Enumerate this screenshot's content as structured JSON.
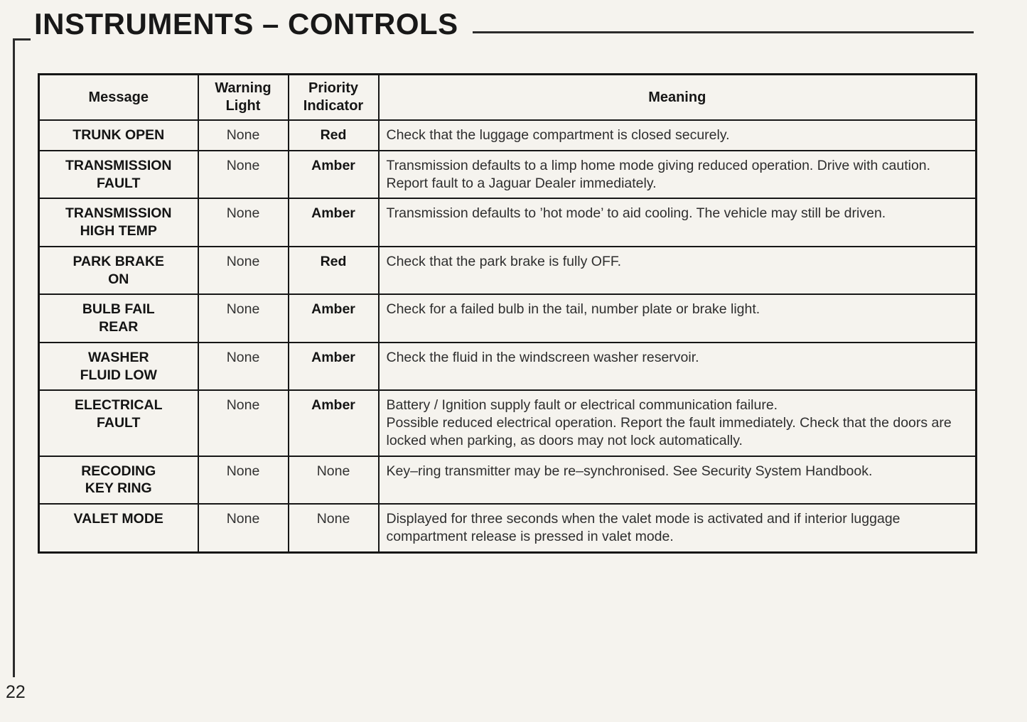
{
  "header": {
    "title": "INSTRUMENTS – CONTROLS"
  },
  "table": {
    "columns": [
      "Message",
      "Warning Light",
      "Priority Indicator",
      "Meaning"
    ],
    "rows": [
      {
        "message_lines": [
          "TRUNK OPEN"
        ],
        "warning_light": "None",
        "priority": "Red",
        "priority_bold": true,
        "meaning": "Check that the luggage compartment is closed securely."
      },
      {
        "message_lines": [
          "TRANSMISSION",
          "FAULT"
        ],
        "warning_light": "None",
        "priority": "Amber",
        "priority_bold": true,
        "meaning": "Transmission defaults to a limp home mode giving reduced operation. Drive with caution. Report fault to a Jaguar Dealer immediately."
      },
      {
        "message_lines": [
          "TRANSMISSION",
          "HIGH TEMP"
        ],
        "warning_light": "None",
        "priority": "Amber",
        "priority_bold": true,
        "meaning": "Transmission defaults to ’hot mode’ to aid cooling. The vehicle may still be driven."
      },
      {
        "message_lines": [
          "PARK BRAKE",
          "ON"
        ],
        "warning_light": "None",
        "priority": "Red",
        "priority_bold": true,
        "meaning": "Check that the park brake is fully OFF."
      },
      {
        "message_lines": [
          "BULB FAIL",
          "REAR"
        ],
        "warning_light": "None",
        "priority": "Amber",
        "priority_bold": true,
        "meaning": "Check for a failed bulb in the tail, number plate or brake light."
      },
      {
        "message_lines": [
          "WASHER",
          "FLUID LOW"
        ],
        "warning_light": "None",
        "priority": "Amber",
        "priority_bold": true,
        "meaning": "Check the fluid in the windscreen washer reservoir."
      },
      {
        "message_lines": [
          "ELECTRICAL",
          "FAULT"
        ],
        "warning_light": "None",
        "priority": "Amber",
        "priority_bold": true,
        "meaning": "Battery / Ignition supply fault or electrical communication failure.\nPossible reduced electrical operation. Report the fault immediately. Check that the doors are locked when parking, as doors may not lock automatically."
      },
      {
        "message_lines": [
          "RECODING",
          "KEY RING"
        ],
        "warning_light": "None",
        "priority": "None",
        "priority_bold": false,
        "meaning": "Key–ring transmitter may be re–synchronised. See Security System Handbook."
      },
      {
        "message_lines": [
          "VALET MODE"
        ],
        "warning_light": "None",
        "priority": "None",
        "priority_bold": false,
        "meaning": "Displayed for three seconds when the valet mode is activated and if interior luggage compartment release is pressed in valet mode."
      }
    ]
  },
  "footer": {
    "page_number": "22"
  },
  "colors": {
    "paper": "#f5f3ee",
    "ink": "#161616"
  }
}
